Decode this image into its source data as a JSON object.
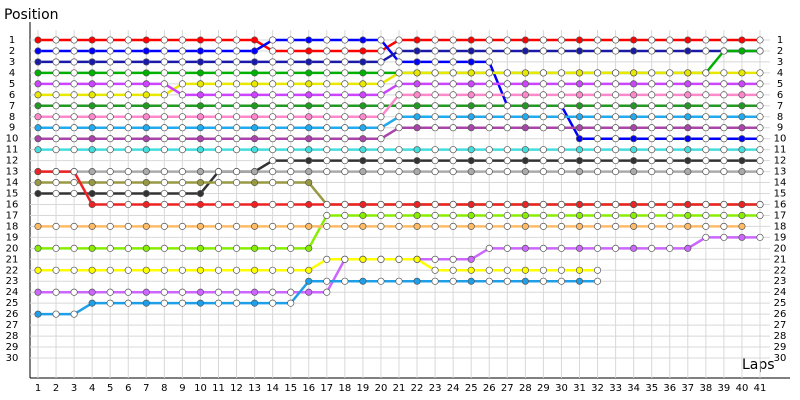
{
  "chart_data": {
    "type": "line",
    "title": "Position",
    "x_label": "Laps",
    "x": [
      1,
      2,
      3,
      4,
      5,
      6,
      7,
      8,
      9,
      10,
      11,
      12,
      13,
      14,
      15,
      16,
      17,
      18,
      19,
      20,
      21,
      22,
      23,
      24,
      25,
      26,
      27,
      28,
      29,
      30,
      31,
      32,
      33,
      34,
      35,
      36,
      37,
      38,
      39,
      40,
      41
    ],
    "xlim": [
      1,
      41
    ],
    "xticks": [
      1,
      2,
      3,
      4,
      5,
      6,
      7,
      8,
      9,
      10,
      11,
      12,
      13,
      14,
      15,
      16,
      17,
      18,
      19,
      20,
      21,
      22,
      23,
      24,
      25,
      26,
      27,
      28,
      29,
      30,
      31,
      32,
      33,
      34,
      35,
      36,
      37,
      38,
      39,
      40,
      41
    ],
    "ylim": [
      1,
      30
    ],
    "yticks": [
      1,
      2,
      3,
      4,
      5,
      6,
      7,
      8,
      9,
      10,
      11,
      12,
      13,
      14,
      15,
      16,
      17,
      18,
      19,
      20,
      21,
      22,
      23,
      24,
      25,
      26,
      27,
      28,
      29,
      30
    ],
    "y_inverted": true,
    "grid": true,
    "series": [
      {
        "color": "#ff0000",
        "values": [
          1,
          1,
          1,
          1,
          1,
          1,
          1,
          1,
          1,
          1,
          1,
          1,
          1,
          2,
          2,
          2,
          2,
          2,
          2,
          2,
          1,
          1,
          1,
          1,
          1,
          1,
          1,
          1,
          1,
          1,
          1,
          1,
          1,
          1,
          1,
          1,
          1,
          1,
          1,
          1,
          1
        ]
      },
      {
        "color": "#0000ff",
        "values": [
          2,
          2,
          2,
          2,
          2,
          2,
          2,
          2,
          2,
          2,
          2,
          2,
          2,
          1,
          1,
          1,
          1,
          1,
          1,
          1,
          3,
          3,
          3,
          3,
          3,
          3,
          7,
          7,
          7,
          7,
          10,
          10,
          10,
          10,
          10,
          10,
          10,
          10,
          10,
          10,
          10
        ]
      },
      {
        "color": "#1a1aa8",
        "values": [
          3,
          3,
          3,
          3,
          3,
          3,
          3,
          3,
          3,
          3,
          3,
          3,
          3,
          3,
          3,
          3,
          3,
          3,
          3,
          3,
          2,
          2,
          2,
          2,
          2,
          2,
          2,
          2,
          2,
          2,
          2,
          2,
          2,
          2,
          2,
          2,
          2,
          2,
          2,
          2,
          2
        ]
      },
      {
        "color": "#00b000",
        "values": [
          4,
          4,
          4,
          4,
          4,
          4,
          4,
          4,
          4,
          4,
          4,
          4,
          4,
          4,
          4,
          4,
          4,
          4,
          4,
          4,
          4,
          4,
          4,
          4,
          4,
          4,
          4,
          4,
          4,
          4,
          4,
          4,
          4,
          4,
          4,
          4,
          4,
          4,
          2,
          2,
          2
        ]
      },
      {
        "color": "#e8e800",
        "values": [
          6,
          6,
          6,
          6,
          6,
          6,
          6,
          6,
          5,
          5,
          5,
          5,
          5,
          5,
          5,
          5,
          5,
          5,
          5,
          5,
          4,
          4,
          4,
          4,
          4,
          4,
          4,
          4,
          4,
          4,
          4,
          4,
          4,
          4,
          4,
          4,
          4,
          4,
          4,
          4,
          4
        ]
      },
      {
        "color": "#cc44ff",
        "values": [
          5,
          5,
          5,
          5,
          5,
          5,
          5,
          5,
          6,
          6,
          6,
          6,
          6,
          6,
          6,
          6,
          6,
          6,
          6,
          6,
          5,
          5,
          5,
          5,
          5,
          5,
          5,
          5,
          5,
          5,
          5,
          5,
          5,
          5,
          5,
          5,
          5,
          5,
          5,
          5,
          5
        ]
      },
      {
        "color": "#229922",
        "values": [
          7,
          7,
          7,
          7,
          7,
          7,
          7,
          7,
          7,
          7,
          7,
          7,
          7,
          7,
          7,
          7,
          7,
          7,
          7,
          7,
          7,
          7,
          7,
          7,
          7,
          7,
          7,
          7,
          7,
          7,
          7,
          7,
          7,
          7,
          7,
          7,
          7,
          7,
          7,
          7,
          7
        ]
      },
      {
        "color": "#ff88cc",
        "values": [
          8,
          8,
          8,
          8,
          8,
          8,
          8,
          8,
          8,
          8,
          8,
          8,
          8,
          8,
          8,
          8,
          8,
          8,
          8,
          8,
          6,
          6,
          6,
          6,
          6,
          6,
          6,
          6,
          6,
          6,
          6,
          6,
          6,
          6,
          6,
          6,
          6,
          6,
          6,
          6,
          6
        ]
      },
      {
        "color": "#22aaee",
        "values": [
          9,
          9,
          9,
          9,
          9,
          9,
          9,
          9,
          9,
          9,
          9,
          9,
          9,
          9,
          9,
          9,
          9,
          9,
          9,
          9,
          8,
          8,
          8,
          8,
          8,
          8,
          8,
          8,
          8,
          8,
          8,
          8,
          8,
          8,
          8,
          8,
          8,
          8,
          8,
          8,
          8
        ]
      },
      {
        "color": "#aa44aa",
        "values": [
          10,
          10,
          10,
          10,
          10,
          10,
          10,
          10,
          10,
          10,
          10,
          10,
          10,
          10,
          10,
          10,
          10,
          10,
          10,
          10,
          9,
          9,
          9,
          9,
          9,
          9,
          9,
          9,
          9,
          9,
          9,
          9,
          9,
          9,
          9,
          9,
          9,
          9,
          9,
          9,
          9
        ]
      },
      {
        "color": "#44dddd",
        "values": [
          11,
          11,
          11,
          11,
          11,
          11,
          11,
          11,
          11,
          11,
          11,
          11,
          11,
          11,
          11,
          11,
          11,
          11,
          11,
          11,
          11,
          11,
          11,
          11,
          11,
          11,
          11,
          11,
          11,
          11,
          11,
          11,
          11,
          11,
          11,
          11,
          11,
          11,
          11,
          11,
          11
        ]
      },
      {
        "color": "#333333",
        "values": [
          15,
          15,
          15,
          15,
          15,
          15,
          15,
          15,
          15,
          15,
          13,
          13,
          13,
          12,
          12,
          12,
          12,
          12,
          12,
          12,
          12,
          12,
          12,
          12,
          12,
          12,
          12,
          12,
          12,
          12,
          12,
          12,
          12,
          12,
          12,
          12,
          12,
          12,
          12,
          12,
          12
        ]
      },
      {
        "color": "#aaaaaa",
        "values": [
          13,
          13,
          13,
          13,
          13,
          13,
          13,
          13,
          13,
          13,
          13,
          13,
          13,
          13,
          13,
          13,
          13,
          13,
          13,
          13,
          13,
          13,
          13,
          13,
          13,
          13,
          13,
          13,
          13,
          13,
          13,
          13,
          13,
          13,
          13,
          13,
          13,
          13,
          13,
          13,
          13
        ]
      },
      {
        "color": "#999944",
        "values": [
          14,
          14,
          14,
          14,
          14,
          14,
          14,
          14,
          14,
          14,
          14,
          14,
          14,
          14,
          14,
          14,
          16,
          16,
          16,
          16,
          16,
          16,
          16,
          16,
          16,
          16,
          16,
          16,
          16,
          16,
          16,
          16,
          16,
          16,
          16,
          16,
          16,
          16,
          16,
          16,
          16
        ]
      },
      {
        "color": "#ee2222",
        "values": [
          13,
          13,
          13,
          16,
          16,
          16,
          16,
          16,
          16,
          16,
          16,
          16,
          16,
          16,
          16,
          16,
          16,
          16,
          16,
          16,
          16,
          16,
          16,
          16,
          16,
          16,
          16,
          16,
          16,
          16,
          16,
          16,
          16,
          16,
          16,
          16,
          16,
          16,
          16,
          16,
          16
        ]
      },
      {
        "color": "#88ee00",
        "values": [
          20,
          20,
          20,
          20,
          20,
          20,
          20,
          20,
          20,
          20,
          20,
          20,
          20,
          20,
          20,
          20,
          17,
          17,
          17,
          17,
          17,
          17,
          17,
          17,
          17,
          17,
          17,
          17,
          17,
          17,
          17,
          17,
          17,
          17,
          17,
          17,
          17,
          17,
          17,
          17,
          17
        ]
      },
      {
        "color": "#ffbb66",
        "values": [
          18,
          18,
          18,
          18,
          18,
          18,
          18,
          18,
          18,
          18,
          18,
          18,
          18,
          18,
          18,
          18,
          18,
          18,
          18,
          18,
          18,
          18,
          18,
          18,
          18,
          18,
          18,
          18,
          18,
          18,
          18,
          18,
          18,
          18,
          18,
          18,
          18,
          18,
          18,
          18,
          null
        ]
      },
      {
        "color": "#cc66ff",
        "values": [
          24,
          24,
          24,
          24,
          24,
          24,
          24,
          24,
          24,
          24,
          24,
          24,
          24,
          24,
          24,
          24,
          24,
          21,
          21,
          21,
          21,
          21,
          21,
          21,
          21,
          20,
          20,
          20,
          20,
          20,
          20,
          20,
          20,
          20,
          20,
          20,
          20,
          19,
          19,
          19,
          19
        ]
      },
      {
        "color": "#ffff00",
        "values": [
          22,
          22,
          22,
          22,
          22,
          22,
          22,
          22,
          22,
          22,
          22,
          22,
          22,
          22,
          22,
          22,
          21,
          21,
          21,
          21,
          21,
          21,
          22,
          22,
          22,
          22,
          22,
          22,
          22,
          22,
          22,
          22,
          null,
          null,
          null,
          null,
          null,
          null,
          null,
          null,
          null
        ]
      },
      {
        "color": "#1e9fe8",
        "values": [
          26,
          26,
          26,
          25,
          25,
          25,
          25,
          25,
          25,
          25,
          25,
          25,
          25,
          25,
          25,
          23,
          23,
          23,
          23,
          23,
          23,
          23,
          23,
          23,
          23,
          23,
          23,
          23,
          23,
          23,
          23,
          23,
          null,
          null,
          null,
          null,
          null,
          null,
          null,
          null,
          null
        ]
      }
    ]
  }
}
